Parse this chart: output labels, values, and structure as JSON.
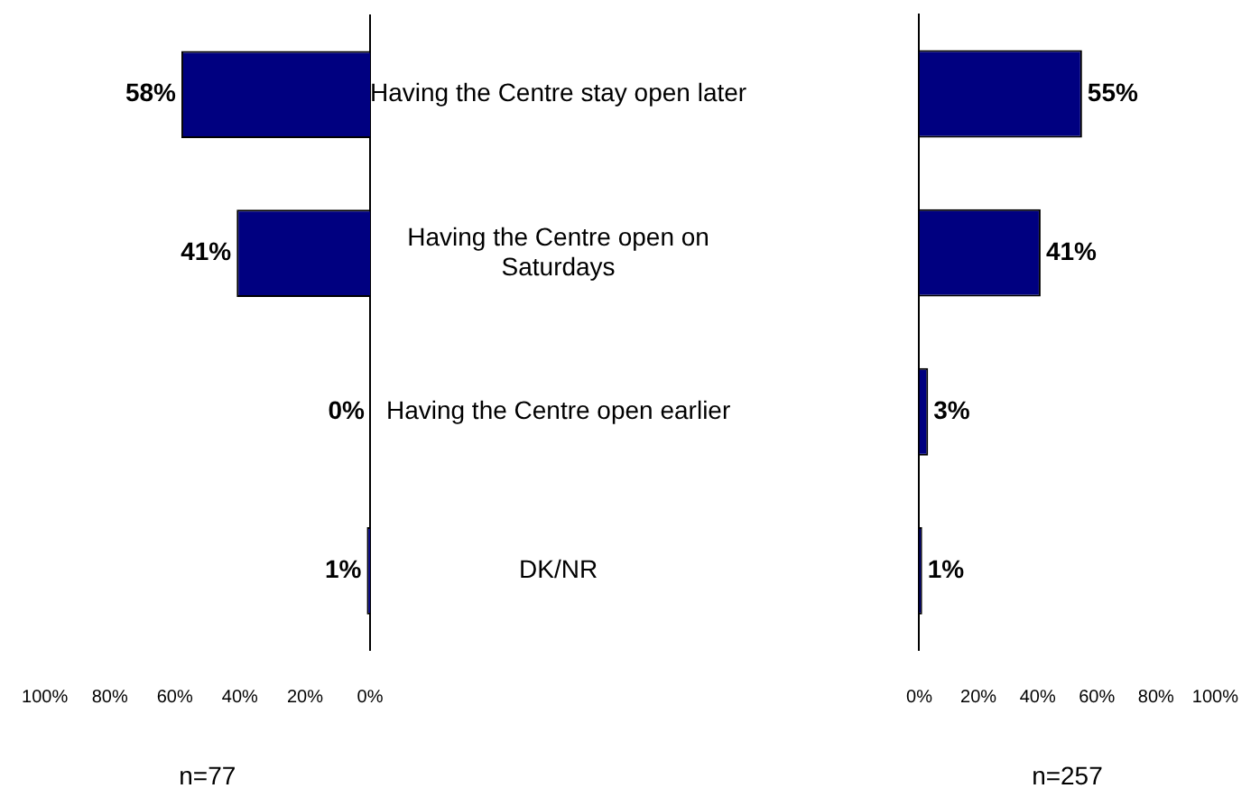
{
  "chart_data": [
    {
      "type": "bar",
      "orientation": "horizontal",
      "categories": [
        "Having the Centre stay open later",
        "Having the Centre open on Saturdays",
        "Having the Centre open earlier",
        "DK/NR"
      ],
      "values": [
        58,
        41,
        0,
        1
      ],
      "value_labels": [
        "58%",
        "41%",
        "0%",
        "1%"
      ],
      "color": "#000080",
      "xlim": [
        100,
        0
      ],
      "xticks": [
        {
          "value": 100,
          "label": "100%"
        },
        {
          "value": 80,
          "label": "80%"
        },
        {
          "value": 60,
          "label": "60%"
        },
        {
          "value": 40,
          "label": "40%"
        },
        {
          "value": 20,
          "label": "20%"
        },
        {
          "value": 0,
          "label": "0%"
        }
      ],
      "xlabel": "n=77"
    },
    {
      "type": "bar",
      "orientation": "horizontal",
      "categories": [
        null,
        null,
        null,
        null
      ],
      "values": [
        55,
        41,
        3,
        1
      ],
      "value_labels": [
        "55%",
        "41%",
        "3%",
        "1%"
      ],
      "color": "#000080",
      "xlim": [
        0,
        100
      ],
      "xticks": [
        {
          "value": 0,
          "label": "0%"
        },
        {
          "value": 20,
          "label": "20%"
        },
        {
          "value": 40,
          "label": "40%"
        },
        {
          "value": 60,
          "label": "60%"
        },
        {
          "value": 80,
          "label": "80%"
        },
        {
          "value": 100,
          "label": "100%"
        }
      ],
      "xlabel": "n=257",
      "tick_labels": "x"
    }
  ]
}
